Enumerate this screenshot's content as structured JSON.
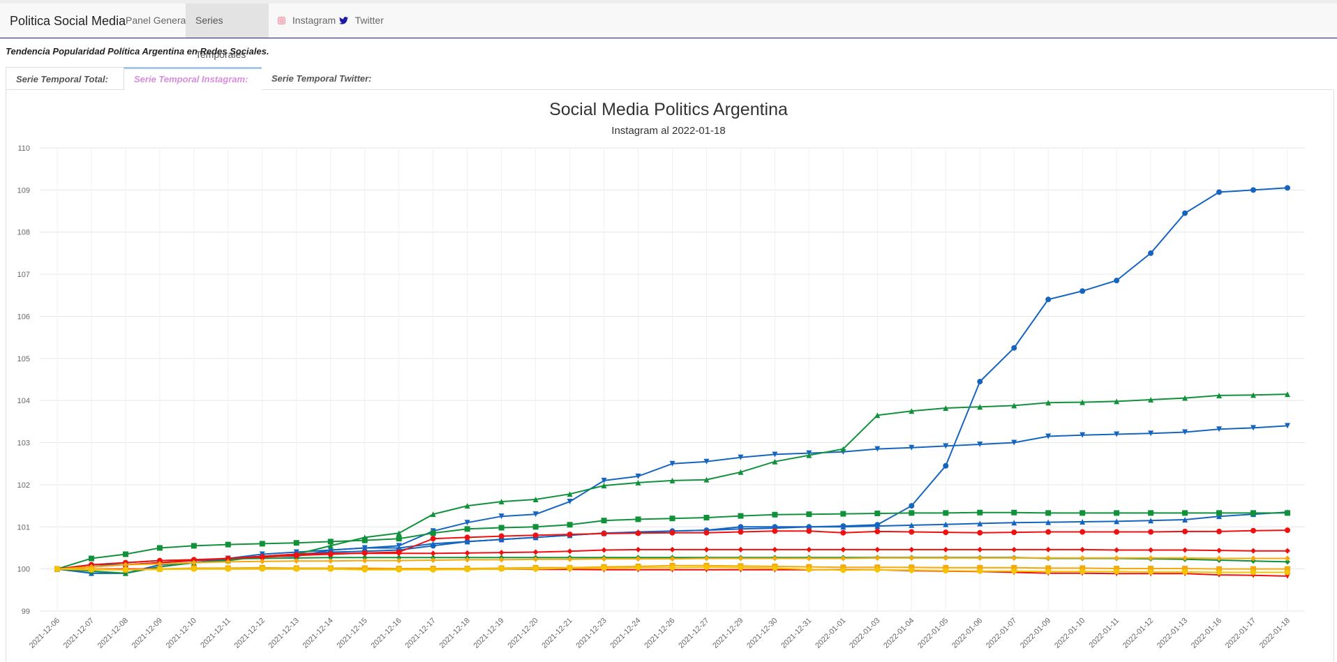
{
  "navbar": {
    "brand": "Politica Social Media",
    "items": [
      {
        "label": "Panel General"
      },
      {
        "label": "Series Temporales"
      },
      {
        "label": "Instagram"
      },
      {
        "label": "Twitter"
      }
    ]
  },
  "subtitle": "Tendencia Popularidad Política Argentina en Redes Sociales.",
  "tabs": [
    {
      "label": "Serie Temporal Total:"
    },
    {
      "label": "Serie Temporal Instagram:"
    },
    {
      "label": "Serie Temporal Twitter:"
    }
  ],
  "colors": {
    "blue": "#1565c0",
    "green": "#10913a",
    "red": "#ee1111",
    "orange": "#f4a90c",
    "yellow": "#f5c400"
  },
  "chart_data": {
    "type": "line",
    "title": "Social Media Politics Argentina",
    "subtitle": "Instagram al 2022-01-18",
    "ylim": [
      99,
      110
    ],
    "yticks": [
      "99",
      "100",
      "101",
      "102",
      "103",
      "104",
      "105",
      "106",
      "107",
      "108",
      "109",
      "110"
    ],
    "grid": true,
    "categories": [
      "2021-12-06",
      "2021-12-07",
      "2021-12-08",
      "2021-12-09",
      "2021-12-10",
      "2021-12-11",
      "2021-12-12",
      "2021-12-13",
      "2021-12-14",
      "2021-12-15",
      "2021-12-16",
      "2021-12-17",
      "2021-12-18",
      "2021-12-19",
      "2021-12-20",
      "2021-12-21",
      "2021-12-23",
      "2021-12-24",
      "2021-12-26",
      "2021-12-27",
      "2021-12-29",
      "2021-12-30",
      "2021-12-31",
      "2022-01-01",
      "2022-01-03",
      "2022-01-04",
      "2022-01-05",
      "2022-01-06",
      "2022-01-07",
      "2022-01-09",
      "2022-01-10",
      "2022-01-11",
      "2022-01-12",
      "2022-01-13",
      "2022-01-16",
      "2022-01-17",
      "2022-01-18"
    ],
    "series": [
      {
        "color": "#1565c0",
        "marker": "circle",
        "values": [
          100,
          100.1,
          100.1,
          100.15,
          100.2,
          100.25,
          100.3,
          100.35,
          100.4,
          100.42,
          100.45,
          100.55,
          100.65,
          100.7,
          100.75,
          100.8,
          100.85,
          100.85,
          100.9,
          100.92,
          101.0,
          101.0,
          101.0,
          101.02,
          101.05,
          101.5,
          102.45,
          104.45,
          105.25,
          106.4,
          106.6,
          106.85,
          107.5,
          108.45,
          108.95,
          109.0,
          109.05
        ]
      },
      {
        "color": "#1565c0",
        "marker": "triangle-down",
        "values": [
          100,
          99.9,
          99.9,
          100.1,
          100.15,
          100.25,
          100.35,
          100.4,
          100.45,
          100.5,
          100.55,
          100.9,
          101.1,
          101.25,
          101.3,
          101.6,
          102.1,
          102.2,
          102.5,
          102.55,
          102.65,
          102.72,
          102.75,
          102.78,
          102.85,
          102.88,
          102.92,
          102.96,
          103.0,
          103.15,
          103.18,
          103.2,
          103.22,
          103.25,
          103.32,
          103.35,
          103.4
        ]
      },
      {
        "color": "#1565c0",
        "marker": "triangle-up",
        "values": [
          100,
          99.9,
          99.9,
          100.05,
          100.15,
          100.22,
          100.3,
          100.3,
          100.45,
          100.5,
          100.5,
          100.6,
          100.65,
          100.7,
          100.75,
          100.8,
          100.85,
          100.88,
          100.9,
          100.92,
          100.95,
          100.97,
          101.0,
          101.0,
          101.02,
          101.04,
          101.06,
          101.08,
          101.1,
          101.11,
          101.12,
          101.13,
          101.15,
          101.17,
          101.25,
          101.3,
          101.35
        ]
      },
      {
        "color": "#10913a",
        "marker": "triangle-up",
        "values": [
          100,
          99.95,
          99.9,
          100.05,
          100.15,
          100.2,
          100.3,
          100.35,
          100.55,
          100.75,
          100.85,
          101.3,
          101.5,
          101.6,
          101.65,
          101.78,
          101.98,
          102.05,
          102.1,
          102.12,
          102.3,
          102.55,
          102.7,
          102.85,
          103.65,
          103.75,
          103.82,
          103.85,
          103.88,
          103.95,
          103.96,
          103.98,
          104.02,
          104.06,
          104.12,
          104.13,
          104.15
        ]
      },
      {
        "color": "#10913a",
        "marker": "square",
        "values": [
          100,
          100.25,
          100.35,
          100.5,
          100.55,
          100.58,
          100.6,
          100.62,
          100.65,
          100.68,
          100.72,
          100.85,
          100.95,
          100.98,
          101.0,
          101.05,
          101.15,
          101.18,
          101.2,
          101.22,
          101.26,
          101.29,
          101.3,
          101.31,
          101.32,
          101.33,
          101.33,
          101.34,
          101.34,
          101.33,
          101.33,
          101.33,
          101.33,
          101.33,
          101.33,
          101.33,
          101.33
        ]
      },
      {
        "color": "#10913a",
        "marker": "diamond",
        "values": [
          100,
          100.1,
          100.15,
          100.2,
          100.22,
          100.24,
          100.25,
          100.26,
          100.27,
          100.27,
          100.27,
          100.27,
          100.27,
          100.27,
          100.27,
          100.27,
          100.27,
          100.27,
          100.27,
          100.27,
          100.27,
          100.27,
          100.27,
          100.27,
          100.27,
          100.27,
          100.27,
          100.27,
          100.27,
          100.25,
          100.25,
          100.25,
          100.24,
          100.23,
          100.21,
          100.19,
          100.17
        ]
      },
      {
        "color": "#ee1111",
        "marker": "circle",
        "values": [
          100,
          100.1,
          100.15,
          100.2,
          100.22,
          100.25,
          100.28,
          100.32,
          100.35,
          100.38,
          100.4,
          100.72,
          100.75,
          100.78,
          100.8,
          100.82,
          100.84,
          100.85,
          100.86,
          100.86,
          100.88,
          100.9,
          100.9,
          100.86,
          100.89,
          100.88,
          100.87,
          100.86,
          100.87,
          100.88,
          100.88,
          100.88,
          100.88,
          100.89,
          100.89,
          100.91,
          100.92
        ]
      },
      {
        "color": "#ee1111",
        "marker": "diamond",
        "values": [
          100,
          100.05,
          100.1,
          100.15,
          100.2,
          100.25,
          100.3,
          100.35,
          100.37,
          100.37,
          100.37,
          100.37,
          100.38,
          100.39,
          100.4,
          100.42,
          100.45,
          100.46,
          100.46,
          100.46,
          100.46,
          100.46,
          100.46,
          100.46,
          100.46,
          100.46,
          100.46,
          100.46,
          100.46,
          100.46,
          100.46,
          100.45,
          100.45,
          100.45,
          100.44,
          100.43,
          100.43
        ]
      },
      {
        "color": "#ee1111",
        "marker": "triangle-down",
        "values": [
          100,
          100,
          100,
          100,
          100,
          100,
          100,
          100,
          100,
          100,
          99.99,
          99.99,
          99.99,
          100,
          99.99,
          99.99,
          99.98,
          99.98,
          99.98,
          99.98,
          99.98,
          99.98,
          99.98,
          99.98,
          99.98,
          99.96,
          99.95,
          99.94,
          99.92,
          99.9,
          99.9,
          99.89,
          99.89,
          99.89,
          99.86,
          99.85,
          99.83
        ]
      },
      {
        "color": "#f4a90c",
        "marker": "square",
        "values": [
          100,
          100,
          99.98,
          100,
          100.02,
          100.02,
          100.03,
          100.02,
          100.02,
          100.02,
          100.01,
          100.01,
          100.01,
          100.02,
          100.03,
          100.03,
          100.05,
          100.06,
          100.08,
          100.08,
          100.07,
          100.06,
          100.05,
          100.04,
          100.04,
          100.04,
          100.03,
          100.03,
          100.03,
          100.02,
          100.02,
          100.01,
          100.01,
          100.01,
          100.0,
          100.0,
          100.0
        ]
      },
      {
        "color": "#f4a90c",
        "marker": "diamond",
        "values": [
          100,
          100.05,
          100.1,
          100.12,
          100.15,
          100.17,
          100.18,
          100.19,
          100.19,
          100.2,
          100.2,
          100.21,
          100.22,
          100.22,
          100.23,
          100.23,
          100.24,
          100.24,
          100.24,
          100.25,
          100.25,
          100.25,
          100.25,
          100.25,
          100.26,
          100.26,
          100.26,
          100.26,
          100.26,
          100.26,
          100.26,
          100.26,
          100.26,
          100.26,
          100.25,
          100.25,
          100.25
        ]
      },
      {
        "color": "#f5c400",
        "marker": "circle",
        "values": [
          100,
          99.98,
          99.98,
          99.99,
          100,
          100,
          100,
          100,
          100,
          99.98,
          99.98,
          99.98,
          99.99,
          100,
          100,
          100.02,
          100.02,
          100.03,
          100.03,
          100.04,
          100.03,
          100.02,
          99.99,
          99.97,
          99.98,
          99.97,
          99.96,
          99.95,
          99.95,
          99.94,
          99.94,
          99.94,
          99.93,
          99.93,
          99.92,
          99.92,
          99.92
        ]
      }
    ]
  }
}
